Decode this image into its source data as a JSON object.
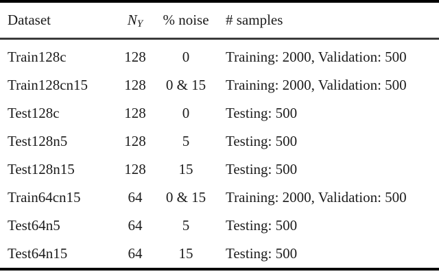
{
  "colors": {
    "background": "#ffffff",
    "text": "#1b1b1b",
    "heavy_rule": "#000000",
    "light_rule": "#3a3a3a"
  },
  "table": {
    "header": {
      "dataset": "Dataset",
      "ny_base": "N",
      "ny_sub": "Y",
      "noise": "% noise",
      "samples": "# samples"
    },
    "rows": [
      {
        "dataset": "Train128c",
        "ny": "128",
        "noise": "0",
        "samples": "Training: 2000, Validation: 500"
      },
      {
        "dataset": "Train128cn15",
        "ny": "128",
        "noise": "0 & 15",
        "samples": "Training: 2000, Validation: 500"
      },
      {
        "dataset": "Test128c",
        "ny": "128",
        "noise": "0",
        "samples": "Testing: 500"
      },
      {
        "dataset": "Test128n5",
        "ny": "128",
        "noise": "5",
        "samples": "Testing: 500"
      },
      {
        "dataset": "Test128n15",
        "ny": "128",
        "noise": "15",
        "samples": "Testing: 500"
      },
      {
        "dataset": "Train64cn15",
        "ny": "64",
        "noise": "0 & 15",
        "samples": "Training: 2000, Validation: 500"
      },
      {
        "dataset": "Test64n5",
        "ny": "64",
        "noise": "5",
        "samples": "Testing: 500"
      },
      {
        "dataset": "Test64n15",
        "ny": "64",
        "noise": "15",
        "samples": "Testing: 500"
      }
    ]
  }
}
